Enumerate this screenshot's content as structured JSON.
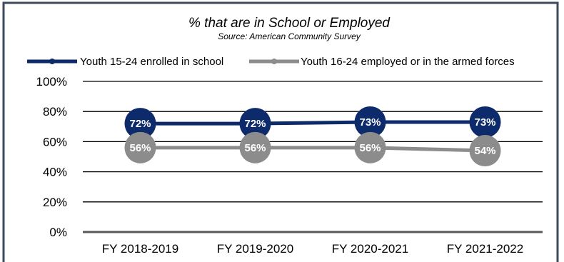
{
  "chart_data": {
    "type": "line",
    "title": "% that are in School or Employed",
    "subtitle": "Source: American Community Survey",
    "categories": [
      "FY 2018-2019",
      "FY 2019-2020",
      "FY 2020-2021",
      "FY 2021-2022"
    ],
    "series": [
      {
        "name": "Youth 15-24 enrolled in school",
        "values": [
          72,
          72,
          73,
          73
        ],
        "labels": [
          "72%",
          "72%",
          "73%",
          "73%"
        ],
        "color": "#0d2a6a"
      },
      {
        "name": "Youth 16-24 employed or in the armed forces",
        "values": [
          56,
          56,
          56,
          54
        ],
        "labels": [
          "56%",
          "56%",
          "56%",
          "54%"
        ],
        "color": "#8c8c8c"
      }
    ],
    "y_ticks": [
      "0%",
      "20%",
      "40%",
      "60%",
      "80%",
      "100%"
    ],
    "ylim": [
      0,
      100
    ],
    "grid": true,
    "legend_position": "top"
  },
  "colors": {
    "border": "#3d4a5c",
    "gridline": "#000000",
    "baseline": "#595959"
  }
}
